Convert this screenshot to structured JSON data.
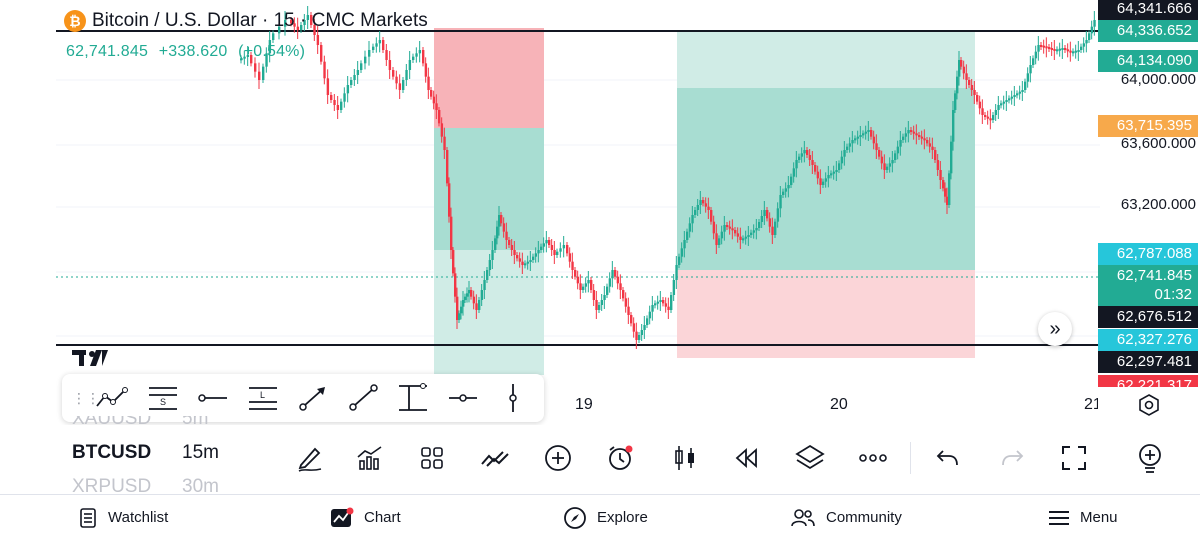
{
  "header": {
    "symbol_title": "Bitcoin / U.S. Dollar · 15 · CMC Markets",
    "last_price": "62,741.845",
    "change": "+338.620",
    "change_pct": "(+0.54%)"
  },
  "price_axis": {
    "badges": [
      {
        "text": "64,341.666",
        "bg": "#131722"
      },
      {
        "text": "64,336.652",
        "bg": "#22ab94"
      },
      {
        "text": "64,134.090",
        "bg": "#22ab94"
      },
      {
        "text": "63,715.395",
        "bg": "#f7a94b"
      },
      {
        "text": "62,787.088",
        "bg": "#26c6da"
      },
      {
        "text": "62,741.845",
        "bg": "#22ab94"
      },
      {
        "text": "01:32",
        "bg": "#22ab94"
      },
      {
        "text": "62,676.512",
        "bg": "#131722"
      },
      {
        "text": "62,327.276",
        "bg": "#26c6da"
      },
      {
        "text": "62,297.481",
        "bg": "#131722"
      },
      {
        "text": "62,221.317",
        "bg": "#f23645"
      }
    ],
    "ticks": [
      "64,000.000",
      "63,600.000",
      "63,200.000"
    ]
  },
  "time_axis": {
    "labels": [
      "19",
      "20",
      "21"
    ]
  },
  "drawing_tools": [
    "trend-line-icon",
    "fib-retracement-icon",
    "horizontal-line-icon",
    "long-position-icon",
    "arrow-icon",
    "ray-icon",
    "anchored-vwap-icon",
    "horizontal-ray-icon",
    "vertical-line-icon"
  ],
  "watchlist": [
    {
      "symbol": "XAUUSD",
      "tf": "5m"
    },
    {
      "symbol": "BTCUSD",
      "tf": "15m"
    },
    {
      "symbol": "XRPUSD",
      "tf": "30m"
    }
  ],
  "toolbar_icons": [
    "draw-icon",
    "indicators-icon",
    "layouts-icon",
    "compare-icon",
    "add-icon",
    "alert-icon",
    "chart-type-icon",
    "replay-icon",
    "layers-icon",
    "more-icon",
    "undo-icon",
    "redo-icon",
    "fullscreen-icon",
    "idea-icon"
  ],
  "nav": {
    "watchlist": "Watchlist",
    "chart": "Chart",
    "explore": "Explore",
    "community": "Community",
    "menu": "Menu"
  },
  "colors": {
    "up": "#22ab94",
    "down": "#f23645",
    "accent": "#22ab94"
  }
}
